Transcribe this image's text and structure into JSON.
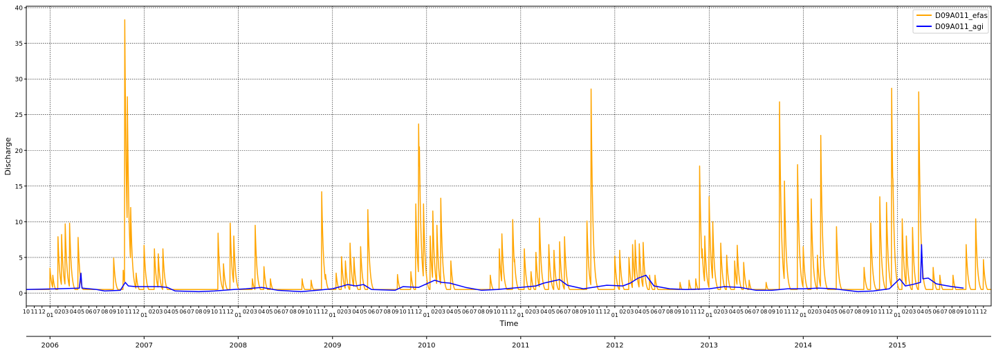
{
  "chart_data": {
    "type": "line",
    "xlabel": "Time",
    "ylabel": "Discharge",
    "ylim": [
      -1.8,
      40.2
    ],
    "yticks": [
      0,
      5,
      10,
      15,
      20,
      25,
      30,
      35,
      40
    ],
    "xlim": [
      "2005-10-01",
      "2015-12-31"
    ],
    "grid": true,
    "legend_position": "top-right",
    "year_labels": [
      "2006",
      "2007",
      "2008",
      "2009",
      "2010",
      "2011",
      "2012",
      "2013",
      "2014",
      "2015"
    ],
    "month_labels": [
      "10",
      "11",
      "12",
      "01",
      "02",
      "03",
      "04",
      "05",
      "06",
      "07",
      "08",
      "09"
    ],
    "series": [
      {
        "name": "D09A011_efas",
        "color": "#ffa500",
        "baseline": 0.5,
        "peaks": [
          [
            "2006-01-01",
            3.5
          ],
          [
            "2006-01-12",
            2.5
          ],
          [
            "2006-02-01",
            7.9
          ],
          [
            "2006-02-15",
            8.2
          ],
          [
            "2006-03-01",
            9.7
          ],
          [
            "2006-03-18",
            9.8
          ],
          [
            "2006-04-20",
            7.8
          ],
          [
            "2006-09-05",
            4.9
          ],
          [
            "2006-10-12",
            3.2
          ],
          [
            "2006-10-18",
            38.3
          ],
          [
            "2006-10-28",
            27.5
          ],
          [
            "2006-11-10",
            12.0
          ],
          [
            "2006-12-01",
            2.8
          ],
          [
            "2007-01-01",
            6.7
          ],
          [
            "2007-02-10",
            6.2
          ],
          [
            "2007-02-25",
            5.5
          ],
          [
            "2007-03-15",
            6.2
          ],
          [
            "2007-10-15",
            8.4
          ],
          [
            "2007-11-05",
            4.1
          ],
          [
            "2007-12-01",
            9.8
          ],
          [
            "2007-12-15",
            8.0
          ],
          [
            "2008-02-25",
            2.0
          ],
          [
            "2008-03-07",
            9.5
          ],
          [
            "2008-04-10",
            3.7
          ],
          [
            "2008-05-05",
            2.0
          ],
          [
            "2008-09-05",
            2.0
          ],
          [
            "2008-10-10",
            1.8
          ],
          [
            "2008-11-20",
            14.2
          ],
          [
            "2008-12-05",
            2.6
          ],
          [
            "2009-01-15",
            2.8
          ],
          [
            "2009-02-05",
            5.1
          ],
          [
            "2009-02-20",
            4.5
          ],
          [
            "2009-03-10",
            7.0
          ],
          [
            "2009-03-25",
            5.0
          ],
          [
            "2009-04-20",
            6.5
          ],
          [
            "2009-05-18",
            11.7
          ],
          [
            "2009-09-10",
            2.6
          ],
          [
            "2009-11-01",
            3.0
          ],
          [
            "2009-11-20",
            12.5
          ],
          [
            "2009-12-01",
            23.7
          ],
          [
            "2009-12-04",
            20.5
          ],
          [
            "2009-12-20",
            12.5
          ],
          [
            "2010-01-15",
            8.0
          ],
          [
            "2010-01-25",
            11.5
          ],
          [
            "2010-02-10",
            9.5
          ],
          [
            "2010-02-25",
            13.3
          ],
          [
            "2010-04-05",
            4.5
          ],
          [
            "2010-09-05",
            2.5
          ],
          [
            "2010-10-10",
            6.2
          ],
          [
            "2010-10-20",
            8.3
          ],
          [
            "2010-12-01",
            10.3
          ],
          [
            "2010-12-08",
            4.8
          ],
          [
            "2011-01-15",
            6.2
          ],
          [
            "2011-02-10",
            3.0
          ],
          [
            "2011-03-01",
            5.7
          ],
          [
            "2011-03-15",
            10.5
          ],
          [
            "2011-04-20",
            6.8
          ],
          [
            "2011-05-10",
            6.0
          ],
          [
            "2011-06-01",
            7.2
          ],
          [
            "2011-06-20",
            7.9
          ],
          [
            "2011-09-15",
            10.1
          ],
          [
            "2011-10-01",
            28.6
          ],
          [
            "2011-10-15",
            3.3
          ],
          [
            "2012-01-01",
            5.2
          ],
          [
            "2012-01-20",
            6.0
          ],
          [
            "2012-02-25",
            5.0
          ],
          [
            "2012-03-10",
            6.8
          ],
          [
            "2012-03-20",
            7.4
          ],
          [
            "2012-04-05",
            6.9
          ],
          [
            "2012-04-20",
            7.1
          ],
          [
            "2012-05-15",
            2.5
          ],
          [
            "2012-06-05",
            2.5
          ],
          [
            "2012-09-10",
            1.5
          ],
          [
            "2012-10-15",
            1.8
          ],
          [
            "2012-11-10",
            2.0
          ],
          [
            "2012-11-25",
            17.8
          ],
          [
            "2012-12-05",
            6.2
          ],
          [
            "2012-12-15",
            8.0
          ],
          [
            "2013-01-01",
            13.5
          ],
          [
            "2013-01-15",
            10.0
          ],
          [
            "2013-02-15",
            7.0
          ],
          [
            "2013-03-10",
            5.3
          ],
          [
            "2013-04-10",
            4.5
          ],
          [
            "2013-04-20",
            6.7
          ],
          [
            "2013-05-15",
            4.3
          ],
          [
            "2013-06-05",
            1.8
          ],
          [
            "2013-08-10",
            1.5
          ],
          [
            "2013-10-01",
            26.8
          ],
          [
            "2013-10-20",
            15.7
          ],
          [
            "2013-12-10",
            18.0
          ],
          [
            "2014-01-01",
            6.5
          ],
          [
            "2014-02-01",
            13.2
          ],
          [
            "2014-02-25",
            5.3
          ],
          [
            "2014-03-10",
            22.1
          ],
          [
            "2014-05-10",
            9.3
          ],
          [
            "2014-08-25",
            3.6
          ],
          [
            "2014-09-20",
            9.8
          ],
          [
            "2014-10-25",
            13.5
          ],
          [
            "2014-11-20",
            12.7
          ],
          [
            "2014-12-10",
            28.7
          ],
          [
            "2014-12-15",
            16.0
          ],
          [
            "2015-01-20",
            10.4
          ],
          [
            "2015-02-05",
            8.0
          ],
          [
            "2015-03-01",
            9.2
          ],
          [
            "2015-03-25",
            28.2
          ],
          [
            "2015-05-20",
            3.6
          ],
          [
            "2015-06-15",
            2.5
          ],
          [
            "2015-08-05",
            2.5
          ],
          [
            "2015-09-25",
            6.8
          ],
          [
            "2015-11-01",
            10.4
          ],
          [
            "2015-12-01",
            4.7
          ]
        ]
      },
      {
        "name": "D09A011_agi",
        "color": "#0000ff",
        "points": [
          [
            "2005-10-01",
            0.5
          ],
          [
            "2006-02-01",
            0.6
          ],
          [
            "2006-04-25",
            0.7
          ],
          [
            "2006-05-01",
            2.8
          ],
          [
            "2006-05-05",
            0.7
          ],
          [
            "2006-07-01",
            0.5
          ],
          [
            "2006-08-01",
            0.3
          ],
          [
            "2006-10-01",
            0.4
          ],
          [
            "2006-10-20",
            1.5
          ],
          [
            "2006-11-01",
            1.0
          ],
          [
            "2006-12-01",
            0.9
          ],
          [
            "2007-03-01",
            0.9
          ],
          [
            "2007-04-01",
            0.8
          ],
          [
            "2007-05-01",
            0.3
          ],
          [
            "2007-08-01",
            0.2
          ],
          [
            "2007-10-01",
            0.3
          ],
          [
            "2007-12-15",
            0.5
          ],
          [
            "2008-02-01",
            0.6
          ],
          [
            "2008-04-01",
            0.8
          ],
          [
            "2008-06-01",
            0.4
          ],
          [
            "2008-09-01",
            0.2
          ],
          [
            "2008-11-01",
            0.4
          ],
          [
            "2009-01-01",
            0.6
          ],
          [
            "2009-02-01",
            0.9
          ],
          [
            "2009-03-01",
            1.2
          ],
          [
            "2009-04-01",
            1.0
          ],
          [
            "2009-05-01",
            1.2
          ],
          [
            "2009-06-01",
            0.5
          ],
          [
            "2009-09-01",
            0.4
          ],
          [
            "2009-10-01",
            0.9
          ],
          [
            "2009-12-01",
            0.8
          ],
          [
            "2010-02-01",
            1.8
          ],
          [
            "2010-03-01",
            1.5
          ],
          [
            "2010-04-01",
            1.4
          ],
          [
            "2010-06-01",
            0.8
          ],
          [
            "2010-08-01",
            0.4
          ],
          [
            "2010-10-01",
            0.5
          ],
          [
            "2010-12-01",
            0.7
          ],
          [
            "2011-02-01",
            0.9
          ],
          [
            "2011-03-01",
            1.0
          ],
          [
            "2011-04-01",
            1.4
          ],
          [
            "2011-06-01",
            1.9
          ],
          [
            "2011-07-01",
            1.1
          ],
          [
            "2011-09-01",
            0.6
          ],
          [
            "2011-12-01",
            1.1
          ],
          [
            "2012-02-01",
            1.0
          ],
          [
            "2012-03-01",
            1.4
          ],
          [
            "2012-04-01",
            2.1
          ],
          [
            "2012-05-01",
            2.5
          ],
          [
            "2012-06-01",
            1.0
          ],
          [
            "2012-08-01",
            0.6
          ],
          [
            "2012-10-01",
            0.5
          ],
          [
            "2013-01-01",
            0.6
          ],
          [
            "2013-03-01",
            0.9
          ],
          [
            "2013-05-01",
            0.8
          ],
          [
            "2013-07-01",
            0.4
          ],
          [
            "2013-09-01",
            0.4
          ],
          [
            "2013-11-01",
            0.6
          ],
          [
            "2014-01-01",
            0.6
          ],
          [
            "2014-03-01",
            0.7
          ],
          [
            "2014-05-01",
            0.6
          ],
          [
            "2014-08-01",
            0.2
          ],
          [
            "2014-10-01",
            0.3
          ],
          [
            "2014-12-01",
            0.6
          ],
          [
            "2015-01-10",
            2.0
          ],
          [
            "2015-02-01",
            1.0
          ],
          [
            "2015-03-01",
            1.2
          ],
          [
            "2015-04-01",
            1.5
          ],
          [
            "2015-04-05",
            6.8
          ],
          [
            "2015-04-10",
            2.0
          ],
          [
            "2015-05-01",
            2.1
          ],
          [
            "2015-06-01",
            1.3
          ],
          [
            "2015-07-01",
            1.1
          ],
          [
            "2015-08-01",
            0.9
          ],
          [
            "2015-09-15",
            0.7
          ]
        ]
      }
    ]
  }
}
